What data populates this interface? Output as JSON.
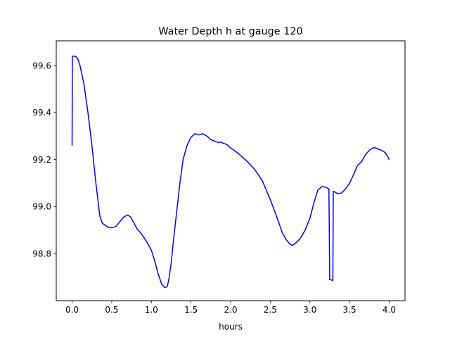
{
  "chart_data": {
    "type": "line",
    "title": "Water Depth h at gauge 120",
    "xlabel": "hours",
    "ylabel": "",
    "xlim": [
      -0.2,
      4.2
    ],
    "ylim": [
      98.6,
      99.705
    ],
    "xticks": [
      0.0,
      0.5,
      1.0,
      1.5,
      2.0,
      2.5,
      3.0,
      3.5,
      4.0
    ],
    "xtick_labels": [
      "0.0",
      "0.5",
      "1.0",
      "1.5",
      "2.0",
      "2.5",
      "3.0",
      "3.5",
      "4.0"
    ],
    "yticks": [
      98.8,
      99.0,
      99.2,
      99.4,
      99.6
    ],
    "ytick_labels": [
      "98.8",
      "99.0",
      "99.2",
      "99.4",
      "99.6"
    ],
    "grid": false,
    "series": [
      {
        "color": "#0000ff",
        "x": [
          0.0,
          0.003,
          0.04,
          0.07,
          0.1,
          0.15,
          0.2,
          0.25,
          0.3,
          0.35,
          0.38,
          0.42,
          0.46,
          0.5,
          0.55,
          0.6,
          0.65,
          0.7,
          0.74,
          0.78,
          0.82,
          0.86,
          0.9,
          0.95,
          1.0,
          1.05,
          1.08,
          1.1,
          1.13,
          1.17,
          1.2,
          1.22,
          1.25,
          1.28,
          1.32,
          1.36,
          1.4,
          1.45,
          1.5,
          1.55,
          1.6,
          1.65,
          1.7,
          1.75,
          1.8,
          1.85,
          1.88,
          1.9,
          1.95,
          2.0,
          2.1,
          2.2,
          2.3,
          2.4,
          2.5,
          2.6,
          2.65,
          2.7,
          2.75,
          2.78,
          2.82,
          2.88,
          2.94,
          3.0,
          3.05,
          3.1,
          3.15,
          3.2,
          3.24,
          3.25,
          3.26,
          3.29,
          3.295,
          3.3,
          3.35,
          3.4,
          3.45,
          3.5,
          3.55,
          3.6,
          3.65,
          3.7,
          3.75,
          3.8,
          3.83,
          3.86,
          3.9,
          3.95,
          3.98,
          4.0
        ],
        "y": [
          99.26,
          99.64,
          99.64,
          99.63,
          99.6,
          99.52,
          99.4,
          99.26,
          99.1,
          98.96,
          98.93,
          98.92,
          98.912,
          98.91,
          98.915,
          98.935,
          98.955,
          98.965,
          98.955,
          98.93,
          98.905,
          98.89,
          98.872,
          98.845,
          98.815,
          98.76,
          98.72,
          98.7,
          98.67,
          98.655,
          98.66,
          98.69,
          98.76,
          98.86,
          98.98,
          99.1,
          99.2,
          99.26,
          99.295,
          99.31,
          99.305,
          99.31,
          99.3,
          99.285,
          99.278,
          99.272,
          99.275,
          99.27,
          99.265,
          99.25,
          99.225,
          99.195,
          99.16,
          99.11,
          99.03,
          98.94,
          98.89,
          98.86,
          98.84,
          98.835,
          98.845,
          98.865,
          98.9,
          98.95,
          99.015,
          99.07,
          99.085,
          99.083,
          99.075,
          98.69,
          98.69,
          98.685,
          99.065,
          99.065,
          99.055,
          99.058,
          99.075,
          99.1,
          99.135,
          99.175,
          99.19,
          99.22,
          99.24,
          99.25,
          99.25,
          99.245,
          99.24,
          99.23,
          99.215,
          99.2
        ]
      }
    ]
  }
}
